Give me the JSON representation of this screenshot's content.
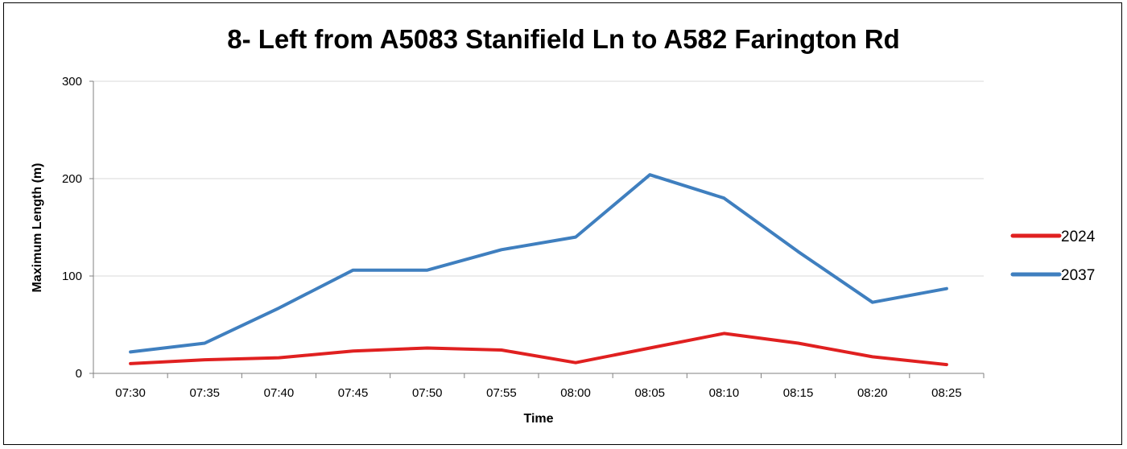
{
  "chart_data": {
    "type": "line",
    "title": "8- Left from A5083 Stanifield Ln to A582 Farington Rd",
    "xlabel": "Time",
    "ylabel": "Maximum Length (m)",
    "categories": [
      "07:30",
      "07:35",
      "07:40",
      "07:45",
      "07:50",
      "07:55",
      "08:00",
      "08:05",
      "08:10",
      "08:15",
      "08:20",
      "08:25"
    ],
    "ylim": [
      0,
      300
    ],
    "yticks": [
      "0",
      "100",
      "200",
      "300"
    ],
    "grid": true,
    "legend_position": "right",
    "series": [
      {
        "name": "2024",
        "color": "#e02020",
        "values": [
          10,
          14,
          16,
          23,
          26,
          24,
          11,
          26,
          41,
          31,
          17,
          9
        ]
      },
      {
        "name": "2037",
        "color": "#3f7fbf",
        "values": [
          22,
          31,
          67,
          106,
          106,
          127,
          140,
          204,
          180,
          125,
          73,
          87
        ]
      }
    ]
  }
}
